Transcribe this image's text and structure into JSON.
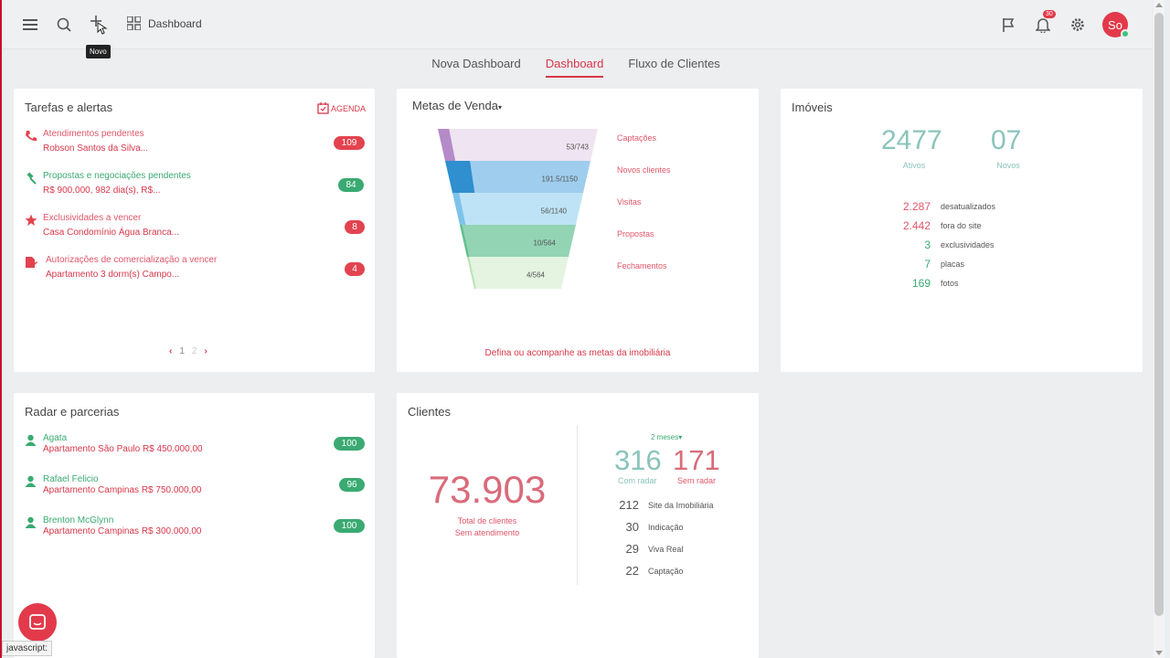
{
  "topbar": {
    "tooltip": "Novo",
    "dashboard_label": "Dashboard",
    "notification_count": "30",
    "avatar_initials": "So"
  },
  "tabs": [
    {
      "label": "Nova Dashboard"
    },
    {
      "label": "Dashboard"
    },
    {
      "label": "Fluxo de Clientes"
    }
  ],
  "tasks": {
    "title": "Tarefas e alertas",
    "agenda_label": "AGENDA",
    "items": [
      {
        "title": "Atendimentos pendentes",
        "detail": "Robson Santos da Silva...",
        "count": "109",
        "icon": "phone-icon"
      },
      {
        "title": "Propostas e negociações pendentes",
        "detail": "R$ 900.000, 982 dia(s), R$...",
        "count": "84",
        "icon": "gavel-icon"
      },
      {
        "title": "Exclusividades a vencer",
        "detail": "Casa Condomínio Água Branca...",
        "count": "8",
        "icon": "star-icon"
      },
      {
        "title": "Autorizações de comercialização a vencer",
        "detail": "Apartamento 3 dorm(s) Campo...",
        "count": "4",
        "icon": "document-icon"
      }
    ],
    "pagination": {
      "page1": "1",
      "page2": "2"
    }
  },
  "metas": {
    "title": "Metas de Venda",
    "footer": "Defina ou acompanhe as metas da imobiliária",
    "stages": [
      {
        "label": "Captações",
        "value": "53/743",
        "progress": 0.07
      },
      {
        "label": "Novos clientes",
        "value": "191.5/1150",
        "progress": 0.17
      },
      {
        "label": "Visitas",
        "value": "56/1140",
        "progress": 0.05
      },
      {
        "label": "Propostas",
        "value": "10/564",
        "progress": 0.02
      },
      {
        "label": "Fechamentos",
        "value": "4/564",
        "progress": 0.01
      }
    ]
  },
  "imoveis": {
    "title": "Imóveis",
    "ativos": "2477",
    "ativos_label": "Ativos",
    "novos": "07",
    "novos_label": "Novos",
    "stats": [
      {
        "value": "2.287",
        "label": "desatualizados",
        "color": "#e0566a"
      },
      {
        "value": "2.442",
        "label": "fora do site",
        "color": "#e0566a"
      },
      {
        "value": "3",
        "label": "exclusividades",
        "color": "#3aaa72"
      },
      {
        "value": "7",
        "label": "placas",
        "color": "#3aaa72"
      },
      {
        "value": "169",
        "label": "fotos",
        "color": "#3aaa72"
      }
    ]
  },
  "radar": {
    "title": "Radar e parcerias",
    "items": [
      {
        "name": "Agata",
        "desc": "Apartamento São Paulo R$ 450.000,00",
        "count": "100"
      },
      {
        "name": "Rafael Felicio",
        "desc": "Apartamento Campinas R$ 750.000,00",
        "count": "96"
      },
      {
        "name": "Brenton McGlynn",
        "desc": "Apartamento Campinas R$ 300.000,00",
        "count": "100"
      }
    ]
  },
  "clientes": {
    "title": "Clientes",
    "total": "73.903",
    "total_label1": "Total de clientes",
    "total_label2": "Sem atendimento",
    "period": "2 meses",
    "com_radar": "316",
    "com_radar_label": "Com radar",
    "sem_radar": "171",
    "sem_radar_label": "Sem radar",
    "sources": [
      {
        "value": "212",
        "label": "Site da Imobiliária"
      },
      {
        "value": "30",
        "label": "Indicação"
      },
      {
        "value": "29",
        "label": "Viva Real"
      },
      {
        "value": "22",
        "label": "Captação"
      }
    ]
  },
  "status_bar": "javascript:",
  "colors": {
    "accent": "#d9374a",
    "green": "#3aaa72",
    "teal": "#8ac4bb"
  }
}
